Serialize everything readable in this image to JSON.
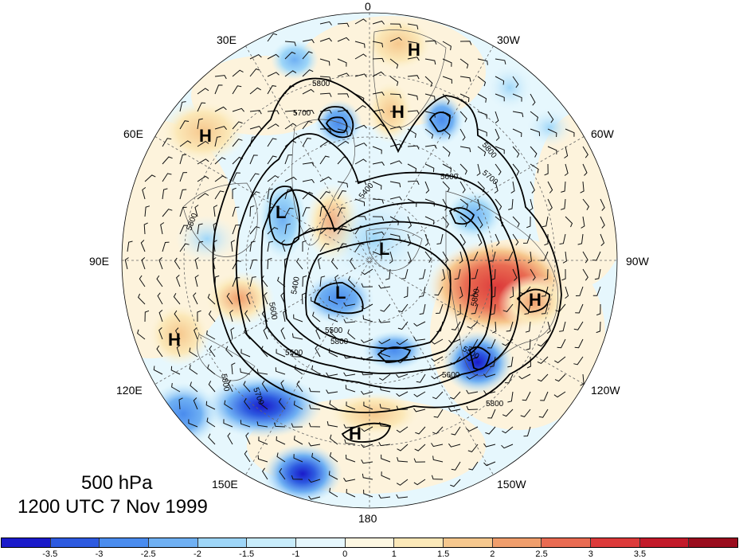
{
  "map": {
    "projection": "polar-stereographic-north",
    "longitude_labels": {
      "lon_0": "0",
      "lon_30w": "30W",
      "lon_60w": "60W",
      "lon_90w": "90W",
      "lon_120w": "120W",
      "lon_150w": "150W",
      "lon_180": "180",
      "lon_150e": "150E",
      "lon_120e": "120E",
      "lon_90e": "90E",
      "lon_60e": "60E",
      "lon_30e": "30E"
    },
    "pressure_centers": {
      "h_greenland": "H",
      "h_iceland": "H",
      "h_siberia": "H",
      "h_mongolia": "H",
      "h_north_america": "H",
      "h_pacific": "H",
      "l_arctic": "L",
      "l_west_siberia": "L",
      "l_east_siberia": "L"
    },
    "contour_labels": {
      "c1": "5800",
      "c2": "5700",
      "c3": "5800",
      "c4": "5700",
      "c5": "5600",
      "c6": "5400",
      "c7": "5800",
      "c8": "5600",
      "c9": "5400",
      "c10": "5500",
      "c11": "5600",
      "c12": "5800",
      "c13": "5500",
      "c14": "5800",
      "c15": "5800",
      "c16": "5700",
      "c17": "5800",
      "c18": "5500"
    },
    "colors": {
      "contour": "#000000",
      "coast": "#555555",
      "grid": "#666666"
    }
  },
  "caption": {
    "level": "500 hPa",
    "time": "1200 UTC 7 Nov 1999"
  },
  "colorbar": {
    "colors": [
      "#1a1aca",
      "#2d5ae0",
      "#4a8cee",
      "#6fb0f3",
      "#9ed6f8",
      "#c8ecfb",
      "#e6f7fd",
      "#fdf7e2",
      "#fbe8b8",
      "#f6c88e",
      "#f09e6c",
      "#e96b52",
      "#dc3a3a",
      "#c31a2a",
      "#9a0d1e"
    ],
    "tick_labels": [
      "-3.5",
      "-3",
      "-2.5",
      "-2",
      "-1.5",
      "-1",
      "0",
      "1",
      "1.5",
      "2",
      "2.5",
      "3",
      "3.5"
    ]
  }
}
